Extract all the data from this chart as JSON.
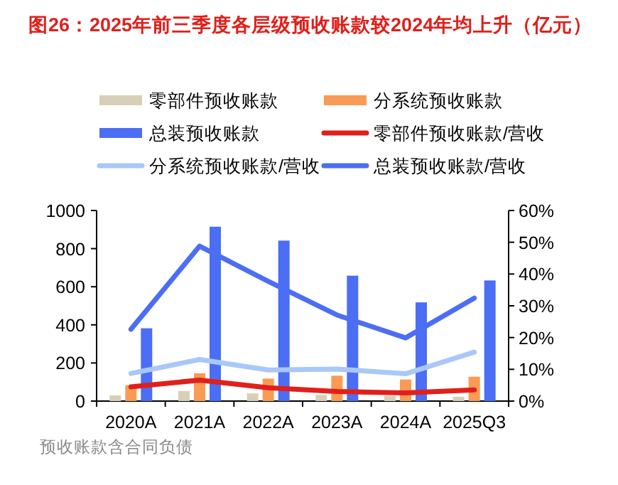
{
  "chart_data": {
    "type": "bar",
    "title": "图26：2025年前三季度各层级预收账款较2024年均上升（亿元）",
    "categories": [
      "2020A",
      "2021A",
      "2022A",
      "2023A",
      "2024A",
      "2025Q3"
    ],
    "series": [
      {
        "name": "零部件预收账款",
        "color": "#d9cfb8",
        "values": [
          30,
          53,
          40,
          33,
          28,
          23
        ]
      },
      {
        "name": "分系统预收账款",
        "color": "#f99b55",
        "values": [
          83,
          146,
          118,
          133,
          113,
          128
        ]
      },
      {
        "name": "总装预收账款",
        "color": "#4c6ef5",
        "values": [
          382,
          915,
          842,
          658,
          518,
          633
        ]
      },
      {
        "name": "零部件预收账款/营收",
        "type": "line",
        "axis": "y2",
        "color": "#e0201b",
        "values": [
          4.5,
          6.6,
          4.2,
          3.0,
          2.6,
          3.5
        ]
      },
      {
        "name": "分系统预收账款/营收",
        "type": "line",
        "axis": "y2",
        "color": "#a9c8f8",
        "values": [
          8.7,
          13.1,
          9.8,
          10.1,
          8.6,
          15.4
        ]
      },
      {
        "name": "总装预收账款/营收",
        "type": "line",
        "axis": "y2",
        "color": "#4c6ef5",
        "values": [
          22.6,
          48.8,
          37.7,
          27.1,
          19.9,
          32.4
        ]
      }
    ],
    "ylim": [
      0,
      1000
    ],
    "yticks": [
      0,
      200,
      400,
      600,
      800,
      1000
    ],
    "y2lim": [
      0,
      60
    ],
    "y2ticks": [
      {
        "value": 0,
        "label": "0%"
      },
      {
        "value": 10,
        "label": "10%"
      },
      {
        "value": 20,
        "label": "20%"
      },
      {
        "value": 30,
        "label": "30%"
      },
      {
        "value": 40,
        "label": "40%"
      },
      {
        "value": 50,
        "label": "50%"
      },
      {
        "value": 60,
        "label": "60%"
      }
    ],
    "legend": "top",
    "grid": false,
    "marker": "none",
    "annotations": [
      "预收账款含合同负债"
    ]
  }
}
